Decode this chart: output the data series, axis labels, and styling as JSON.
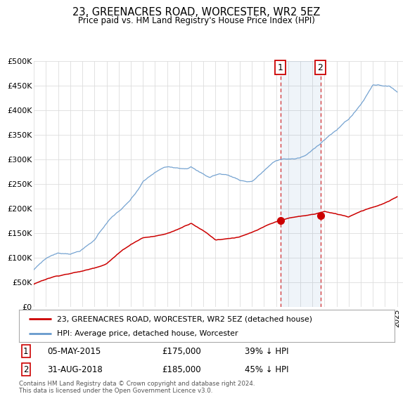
{
  "title": "23, GREENACRES ROAD, WORCESTER, WR2 5EZ",
  "subtitle": "Price paid vs. HM Land Registry's House Price Index (HPI)",
  "ylim": [
    0,
    500000
  ],
  "yticks": [
    0,
    50000,
    100000,
    150000,
    200000,
    250000,
    300000,
    350000,
    400000,
    450000,
    500000
  ],
  "ytick_labels": [
    "£0",
    "£50K",
    "£100K",
    "£150K",
    "£200K",
    "£250K",
    "£300K",
    "£350K",
    "£400K",
    "£450K",
    "£500K"
  ],
  "hpi_color": "#6699cc",
  "price_color": "#cc0000",
  "marker1_date": 2015.37,
  "marker1_price": 175000,
  "marker1_text": "05-MAY-2015",
  "marker1_amount": "£175,000",
  "marker1_note": "39% ↓ HPI",
  "marker2_date": 2018.66,
  "marker2_price": 185000,
  "marker2_text": "31-AUG-2018",
  "marker2_amount": "£185,000",
  "marker2_note": "45% ↓ HPI",
  "legend_line1": "23, GREENACRES ROAD, WORCESTER, WR2 5EZ (detached house)",
  "legend_line2": "HPI: Average price, detached house, Worcester",
  "footer": "Contains HM Land Registry data © Crown copyright and database right 2024.\nThis data is licensed under the Open Government Licence v3.0.",
  "background_color": "#ffffff",
  "grid_color": "#dddddd"
}
